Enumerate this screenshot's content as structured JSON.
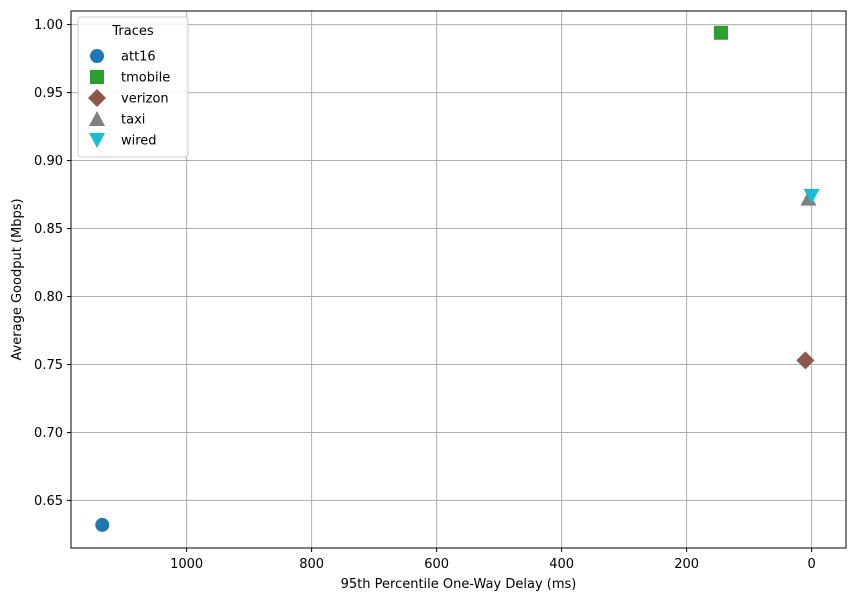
{
  "chart_data": {
    "type": "scatter",
    "title": "",
    "xlabel": "95th Percentile One-Way Delay (ms)",
    "ylabel": "Average Goodput (Mbps)",
    "x_inverted": true,
    "xlim": [
      1185,
      -55
    ],
    "ylim": [
      0.615,
      1.01
    ],
    "x_ticks": [
      1000,
      800,
      600,
      400,
      200,
      0
    ],
    "y_ticks": [
      0.65,
      0.7,
      0.75,
      0.8,
      0.85,
      0.9,
      0.95,
      1.0
    ],
    "x_tick_labels": [
      "1000",
      "800",
      "600",
      "400",
      "200",
      "0"
    ],
    "y_tick_labels": [
      "0.65",
      "0.70",
      "0.75",
      "0.80",
      "0.85",
      "0.90",
      "0.95",
      "1.00"
    ],
    "grid": true,
    "legend": {
      "title": "Traces",
      "placement": "top-left"
    },
    "series": [
      {
        "name": "att16",
        "marker": "circle",
        "color": "#1f77b4",
        "x": [
          1135
        ],
        "y": [
          0.632
        ]
      },
      {
        "name": "tmobile",
        "marker": "square",
        "color": "#2ca02c",
        "x": [
          145
        ],
        "y": [
          0.994
        ]
      },
      {
        "name": "verizon",
        "marker": "diamond",
        "color": "#8c564b",
        "x": [
          10
        ],
        "y": [
          0.753
        ]
      },
      {
        "name": "taxi",
        "marker": "triangle-up",
        "color": "#7f7f7f",
        "x": [
          5
        ],
        "y": [
          0.872
        ]
      },
      {
        "name": "wired",
        "marker": "triangle-down",
        "color": "#17becf",
        "x": [
          0
        ],
        "y": [
          0.874
        ]
      }
    ]
  }
}
